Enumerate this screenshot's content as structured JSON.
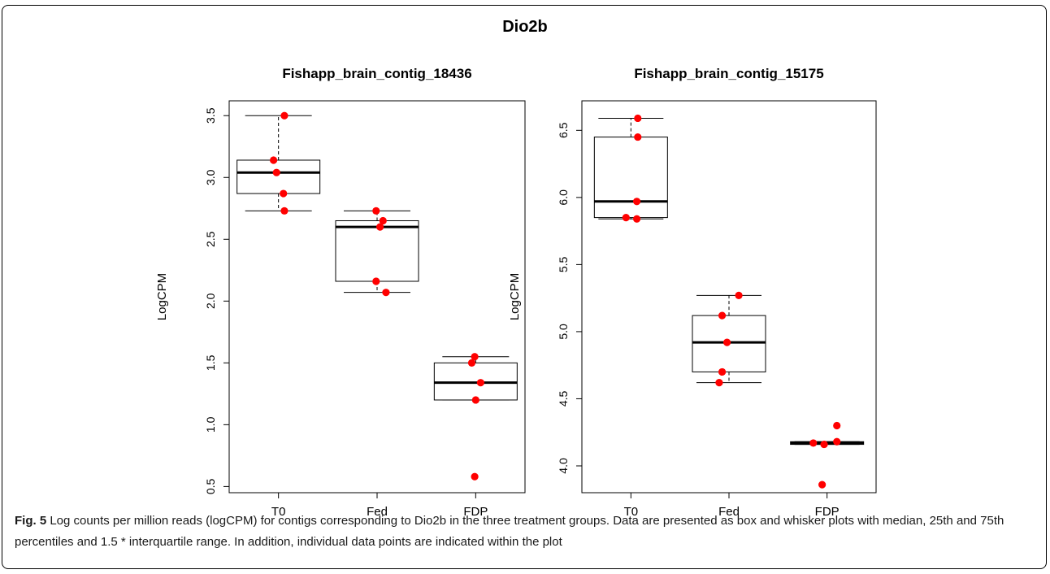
{
  "figure_title": "Dio2b",
  "caption": {
    "label": "Fig. 5",
    "text": "Log counts per million reads (logCPM) for contigs corresponding to Dio2b in the three treatment groups. Data are presented as box and whisker plots with median, 25th and 75th percentiles and 1.5 * interquartile range. In addition, individual data points are indicated within the plot"
  },
  "colors": {
    "point": "#ff0000",
    "box_stroke": "#000000",
    "median": "#000000"
  },
  "chart_data": [
    {
      "type": "box",
      "title": "Fishapp_brain_contig_18436",
      "xlabel": "",
      "ylabel": "LogCPM",
      "categories": [
        "T0",
        "Fed",
        "FDP"
      ],
      "ylim": [
        0.45,
        3.62
      ],
      "yticks": [
        0.5,
        1.0,
        1.5,
        2.0,
        2.5,
        3.0,
        3.5
      ],
      "ytick_labels": [
        "0.5",
        "1.0",
        "1.5",
        "2.0",
        "2.5",
        "3.0",
        "3.5"
      ],
      "boxes": [
        {
          "category": "T0",
          "whisker_low": 2.73,
          "q1": 2.87,
          "median": 3.04,
          "q3": 3.14,
          "whisker_high": 3.5
        },
        {
          "category": "Fed",
          "whisker_low": 2.07,
          "q1": 2.16,
          "median": 2.6,
          "q3": 2.65,
          "whisker_high": 2.73
        },
        {
          "category": "FDP",
          "whisker_low": 1.2,
          "q1": 1.2,
          "median": 1.34,
          "q3": 1.5,
          "whisker_high": 1.55
        }
      ],
      "points": [
        {
          "category": "T0",
          "x_offset": 0.06,
          "y": 3.5
        },
        {
          "category": "T0",
          "x_offset": -0.05,
          "y": 3.14
        },
        {
          "category": "T0",
          "x_offset": -0.02,
          "y": 3.04
        },
        {
          "category": "T0",
          "x_offset": 0.05,
          "y": 2.87
        },
        {
          "category": "T0",
          "x_offset": 0.06,
          "y": 2.73
        },
        {
          "category": "Fed",
          "x_offset": -0.01,
          "y": 2.73
        },
        {
          "category": "Fed",
          "x_offset": 0.06,
          "y": 2.65
        },
        {
          "category": "Fed",
          "x_offset": 0.03,
          "y": 2.6
        },
        {
          "category": "Fed",
          "x_offset": -0.01,
          "y": 2.16
        },
        {
          "category": "Fed",
          "x_offset": 0.09,
          "y": 2.07
        },
        {
          "category": "FDP",
          "x_offset": -0.01,
          "y": 1.55
        },
        {
          "category": "FDP",
          "x_offset": -0.04,
          "y": 1.5
        },
        {
          "category": "FDP",
          "x_offset": 0.05,
          "y": 1.34
        },
        {
          "category": "FDP",
          "x_offset": 0.0,
          "y": 1.2
        },
        {
          "category": "FDP",
          "x_offset": -0.01,
          "y": 0.58
        }
      ]
    },
    {
      "type": "box",
      "title": "Fishapp_brain_contig_15175",
      "xlabel": "",
      "ylabel": "LogCPM",
      "categories": [
        "T0",
        "Fed",
        "FDP"
      ],
      "ylim": [
        3.8,
        6.72
      ],
      "yticks": [
        4.0,
        4.5,
        5.0,
        5.5,
        6.0,
        6.5
      ],
      "ytick_labels": [
        "4.0",
        "4.5",
        "5.0",
        "5.5",
        "6.0",
        "6.5"
      ],
      "boxes": [
        {
          "category": "T0",
          "whisker_low": 5.84,
          "q1": 5.85,
          "median": 5.97,
          "q3": 6.45,
          "whisker_high": 6.59
        },
        {
          "category": "Fed",
          "whisker_low": 4.62,
          "q1": 4.7,
          "median": 4.92,
          "q3": 5.12,
          "whisker_high": 5.27
        },
        {
          "category": "FDP",
          "whisker_low": 4.16,
          "q1": 4.16,
          "median": 4.17,
          "q3": 4.18,
          "whisker_high": 4.18
        }
      ],
      "points": [
        {
          "category": "T0",
          "x_offset": 0.07,
          "y": 6.59
        },
        {
          "category": "T0",
          "x_offset": 0.07,
          "y": 6.45
        },
        {
          "category": "T0",
          "x_offset": 0.06,
          "y": 5.97
        },
        {
          "category": "T0",
          "x_offset": -0.05,
          "y": 5.85
        },
        {
          "category": "T0",
          "x_offset": 0.06,
          "y": 5.84
        },
        {
          "category": "Fed",
          "x_offset": 0.1,
          "y": 5.27
        },
        {
          "category": "Fed",
          "x_offset": -0.07,
          "y": 5.12
        },
        {
          "category": "Fed",
          "x_offset": -0.02,
          "y": 4.92
        },
        {
          "category": "Fed",
          "x_offset": -0.07,
          "y": 4.7
        },
        {
          "category": "Fed",
          "x_offset": -0.1,
          "y": 4.62
        },
        {
          "category": "FDP",
          "x_offset": 0.1,
          "y": 4.3
        },
        {
          "category": "FDP",
          "x_offset": 0.1,
          "y": 4.18
        },
        {
          "category": "FDP",
          "x_offset": -0.14,
          "y": 4.17
        },
        {
          "category": "FDP",
          "x_offset": -0.03,
          "y": 4.16
        },
        {
          "category": "FDP",
          "x_offset": -0.05,
          "y": 3.86
        }
      ]
    }
  ]
}
